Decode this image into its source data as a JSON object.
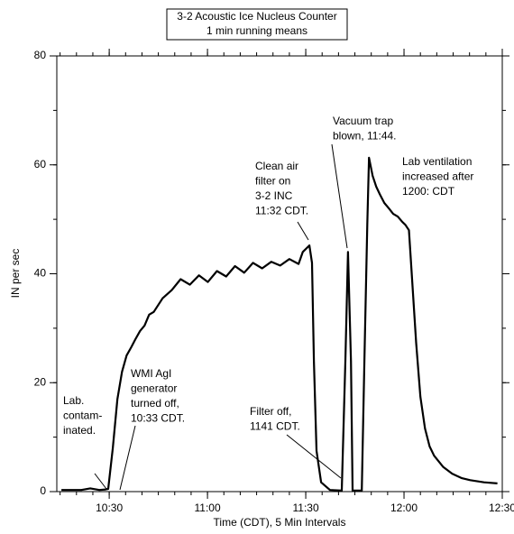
{
  "chart_data": {
    "type": "line",
    "title": [
      "3-2 Acoustic Ice Nucleus Counter",
      "1 min running means"
    ],
    "x_label": "Time (CDT), 5 Min Intervals",
    "y_label": "IN per sec",
    "xlim": [
      614,
      750
    ],
    "ylim": [
      0,
      80
    ],
    "xticks": [
      {
        "value": 630,
        "label": "10:30"
      },
      {
        "value": 660,
        "label": "11:00"
      },
      {
        "value": 690,
        "label": "11:30"
      },
      {
        "value": 720,
        "label": "12:00"
      },
      {
        "value": 750,
        "label": "12:30"
      }
    ],
    "yticks": [
      0,
      20,
      40,
      60,
      80
    ],
    "x_minor_step": 5,
    "y_minor_step": 10,
    "color": "#000000",
    "x": [
      615.4,
      621.5,
      624.2,
      627.0,
      628.9,
      629.7,
      631.1,
      632.5,
      633.9,
      635.3,
      636.7,
      638.0,
      639.4,
      640.8,
      642.2,
      643.6,
      646.3,
      649.1,
      651.8,
      654.6,
      657.4,
      660.1,
      662.9,
      665.7,
      668.4,
      671.2,
      673.9,
      676.7,
      679.5,
      682.2,
      685.0,
      687.8,
      689.1,
      691.1,
      691.9,
      692.5,
      693.3,
      694.7,
      697.4,
      701.0,
      702.1,
      702.9,
      703.8,
      704.3,
      707.1,
      707.9,
      708.8,
      709.3,
      710.4,
      711.5,
      712.6,
      714.0,
      715.4,
      716.7,
      718.1,
      719.5,
      720.4,
      721.5,
      722.3,
      723.7,
      725.0,
      726.4,
      727.8,
      729.2,
      732.0,
      734.7,
      737.5,
      740.2,
      744.4,
      748.5
    ],
    "values": [
      0.3,
      0.3,
      0.6,
      0.3,
      0.4,
      0.5,
      8.0,
      17.0,
      22.0,
      25.0,
      26.5,
      28.0,
      29.5,
      30.5,
      32.5,
      33.0,
      35.5,
      37.0,
      39.0,
      38.0,
      39.7,
      38.5,
      40.5,
      39.5,
      41.4,
      40.2,
      42.0,
      41.0,
      42.2,
      41.5,
      42.7,
      41.8,
      44.0,
      45.2,
      42.0,
      24.0,
      7.5,
      1.7,
      0.3,
      0.2,
      24.0,
      44.0,
      24.0,
      0.2,
      0.2,
      24.0,
      49.0,
      61.3,
      58.0,
      56.0,
      54.6,
      53.0,
      52.0,
      51.0,
      50.5,
      49.5,
      49.0,
      48.0,
      40.5,
      27.3,
      17.4,
      11.6,
      8.3,
      6.6,
      4.5,
      3.3,
      2.5,
      2.1,
      1.7,
      1.5
    ],
    "annotations": [
      [
        "Lab.",
        "contam-",
        "inated."
      ],
      [
        "WMI AgI",
        "generator",
        "turned off,",
        "10:33 CDT."
      ],
      [
        "Filter off,",
        "1141 CDT."
      ],
      [
        "Clean air",
        "filter on",
        "3-2 INC",
        "11:32 CDT."
      ],
      [
        "Vacuum trap",
        "blown, 11:44."
      ],
      [
        "Lab ventilation",
        "increased after",
        "1200: CDT"
      ]
    ]
  }
}
